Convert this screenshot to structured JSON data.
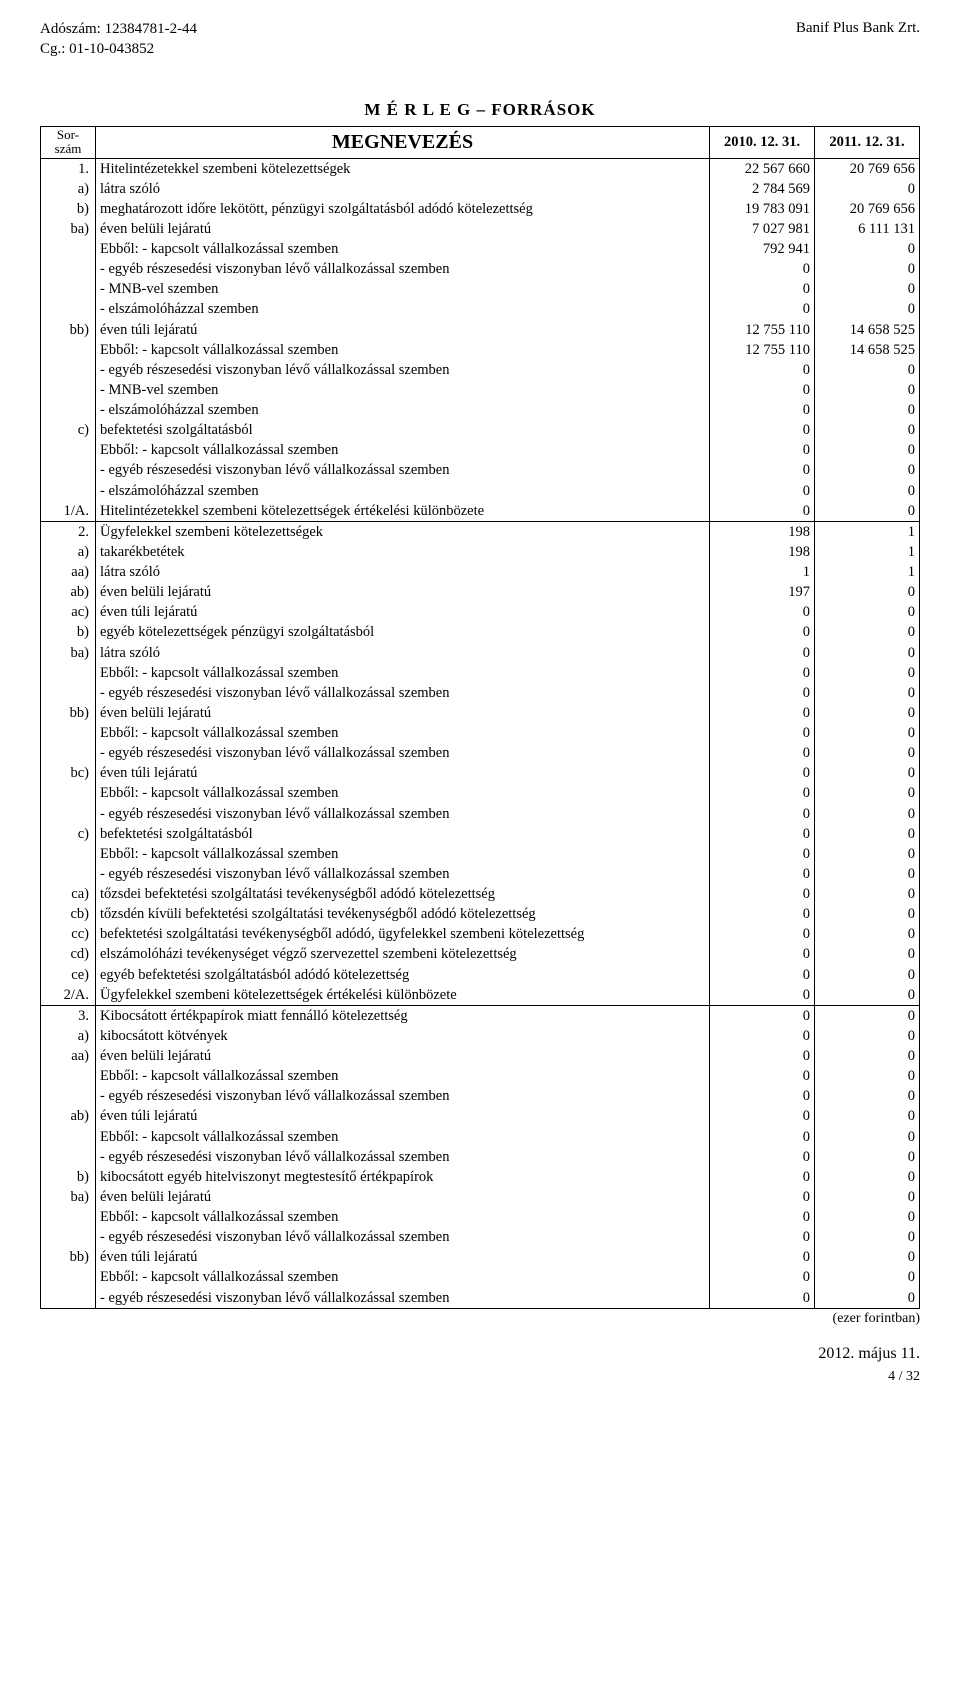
{
  "header": {
    "tax_label": "Adószám: 12384781-2-44",
    "cg_label": "Cg.: 01-10-043852",
    "company": "Banif Plus Bank Zrt."
  },
  "title": "M É R L E G – FORRÁSOK",
  "columns": {
    "sorszam": "Sor-szám",
    "megnevezes": "MEGNEVEZÉS",
    "year1": "2010. 12. 31.",
    "year2": "2011. 12. 31."
  },
  "rows": [
    {
      "n": "1.",
      "name": "Hitelintézetekkel szembeni kötelezettségek",
      "v1": "22 567 660",
      "v2": "20 769 656",
      "section": true
    },
    {
      "n": "a)",
      "name": "látra szóló",
      "v1": "2 784 569",
      "v2": "0"
    },
    {
      "n": "b)",
      "name": "meghatározott időre lekötött, pénzügyi szolgáltatásból adódó kötelezettség",
      "v1": "19 783 091",
      "v2": "20 769 656"
    },
    {
      "n": "ba)",
      "name": "éven belüli lejáratú",
      "v1": "7 027 981",
      "v2": "6 111 131"
    },
    {
      "n": "",
      "name": "Ebből: - kapcsolt vállalkozással szemben",
      "v1": "792 941",
      "v2": "0"
    },
    {
      "n": "",
      "name": "- egyéb részesedési viszonyban lévő vállalkozással szemben",
      "v1": "0",
      "v2": "0"
    },
    {
      "n": "",
      "name": "- MNB-vel szemben",
      "v1": "0",
      "v2": "0"
    },
    {
      "n": "",
      "name": "- elszámolóházzal szemben",
      "v1": "0",
      "v2": "0"
    },
    {
      "n": "bb)",
      "name": "éven túli lejáratú",
      "v1": "12 755 110",
      "v2": "14 658 525"
    },
    {
      "n": "",
      "name": "Ebből: - kapcsolt vállalkozással szemben",
      "v1": "12 755 110",
      "v2": "14 658 525"
    },
    {
      "n": "",
      "name": "- egyéb részesedési viszonyban lévő vállalkozással szemben",
      "v1": "0",
      "v2": "0"
    },
    {
      "n": "",
      "name": "- MNB-vel szemben",
      "v1": "0",
      "v2": "0"
    },
    {
      "n": "",
      "name": "- elszámolóházzal szemben",
      "v1": "0",
      "v2": "0"
    },
    {
      "n": "c)",
      "name": "befektetési szolgáltatásból",
      "v1": "0",
      "v2": "0"
    },
    {
      "n": "",
      "name": "Ebből: - kapcsolt vállalkozással szemben",
      "v1": "0",
      "v2": "0"
    },
    {
      "n": "",
      "name": "- egyéb részesedési viszonyban lévő vállalkozással szemben",
      "v1": "0",
      "v2": "0"
    },
    {
      "n": "",
      "name": "- elszámolóházzal szemben",
      "v1": "0",
      "v2": "0"
    },
    {
      "n": "1/A.",
      "name": "Hitelintézetekkel szembeni kötelezettségek értékelési különbözete",
      "v1": "0",
      "v2": "0"
    },
    {
      "n": "2.",
      "name": "Ügyfelekkel szembeni kötelezettségek",
      "v1": "198",
      "v2": "1",
      "section": true
    },
    {
      "n": "a)",
      "name": "takarékbetétek",
      "v1": "198",
      "v2": "1"
    },
    {
      "n": "aa)",
      "name": "látra szóló",
      "v1": "1",
      "v2": "1"
    },
    {
      "n": "ab)",
      "name": "éven belüli lejáratú",
      "v1": "197",
      "v2": "0"
    },
    {
      "n": "ac)",
      "name": "éven túli lejáratú",
      "v1": "0",
      "v2": "0"
    },
    {
      "n": "b)",
      "name": "egyéb kötelezettségek pénzügyi szolgáltatásból",
      "v1": "0",
      "v2": "0"
    },
    {
      "n": "ba)",
      "name": "látra szóló",
      "v1": "0",
      "v2": "0"
    },
    {
      "n": "",
      "name": "Ebből: - kapcsolt vállalkozással szemben",
      "v1": "0",
      "v2": "0"
    },
    {
      "n": "",
      "name": "- egyéb részesedési viszonyban lévő vállalkozással szemben",
      "v1": "0",
      "v2": "0"
    },
    {
      "n": "bb)",
      "name": "éven belüli lejáratú",
      "v1": "0",
      "v2": "0"
    },
    {
      "n": "",
      "name": "Ebből: - kapcsolt vállalkozással szemben",
      "v1": "0",
      "v2": "0"
    },
    {
      "n": "",
      "name": "- egyéb részesedési viszonyban lévő vállalkozással szemben",
      "v1": "0",
      "v2": "0"
    },
    {
      "n": "bc)",
      "name": "éven túli lejáratú",
      "v1": "0",
      "v2": "0"
    },
    {
      "n": "",
      "name": "Ebből: - kapcsolt vállalkozással szemben",
      "v1": "0",
      "v2": "0"
    },
    {
      "n": "",
      "name": "- egyéb részesedési viszonyban lévő vállalkozással szemben",
      "v1": "0",
      "v2": "0"
    },
    {
      "n": "c)",
      "name": "befektetési szolgáltatásból",
      "v1": "0",
      "v2": "0"
    },
    {
      "n": "",
      "name": "Ebből: - kapcsolt vállalkozással szemben",
      "v1": "0",
      "v2": "0"
    },
    {
      "n": "",
      "name": "- egyéb részesedési viszonyban lévő vállalkozással szemben",
      "v1": "0",
      "v2": "0"
    },
    {
      "n": "ca)",
      "name": "tőzsdei befektetési szolgáltatási tevékenységből adódó kötelezettség",
      "v1": "0",
      "v2": "0"
    },
    {
      "n": "cb)",
      "name": "tőzsdén kívüli befektetési szolgáltatási tevékenységből adódó kötelezettség",
      "v1": "0",
      "v2": "0"
    },
    {
      "n": "cc)",
      "name": "befektetési szolgáltatási tevékenységből adódó, ügyfelekkel szembeni kötelezettség",
      "v1": "0",
      "v2": "0"
    },
    {
      "n": "cd)",
      "name": "elszámolóházi tevékenységet végző szervezettel szembeni kötelezettség",
      "v1": "0",
      "v2": "0"
    },
    {
      "n": "ce)",
      "name": "egyéb befektetési szolgáltatásból adódó kötelezettség",
      "v1": "0",
      "v2": "0"
    },
    {
      "n": "2/A.",
      "name": "Ügyfelekkel szembeni kötelezettségek értékelési különbözete",
      "v1": "0",
      "v2": "0"
    },
    {
      "n": "3.",
      "name": "Kibocsátott értékpapírok miatt fennálló kötelezettség",
      "v1": "0",
      "v2": "0",
      "section": true
    },
    {
      "n": "a)",
      "name": "kibocsátott kötvények",
      "v1": "0",
      "v2": "0"
    },
    {
      "n": "aa)",
      "name": "éven belüli lejáratú",
      "v1": "0",
      "v2": "0"
    },
    {
      "n": "",
      "name": "Ebből: - kapcsolt vállalkozással szemben",
      "v1": "0",
      "v2": "0"
    },
    {
      "n": "",
      "name": "- egyéb részesedési viszonyban lévő vállalkozással szemben",
      "v1": "0",
      "v2": "0"
    },
    {
      "n": "ab)",
      "name": "éven túli lejáratú",
      "v1": "0",
      "v2": "0"
    },
    {
      "n": "",
      "name": "Ebből: - kapcsolt vállalkozással szemben",
      "v1": "0",
      "v2": "0"
    },
    {
      "n": "",
      "name": "- egyéb részesedési viszonyban lévő vállalkozással szemben",
      "v1": "0",
      "v2": "0"
    },
    {
      "n": "b)",
      "name": "kibocsátott egyéb hitelviszonyt megtestesítő értékpapírok",
      "v1": "0",
      "v2": "0"
    },
    {
      "n": "ba)",
      "name": "éven belüli lejáratú",
      "v1": "0",
      "v2": "0"
    },
    {
      "n": "",
      "name": "Ebből: - kapcsolt vállalkozással szemben",
      "v1": "0",
      "v2": "0"
    },
    {
      "n": "",
      "name": "- egyéb részesedési viszonyban lévő vállalkozással szemben",
      "v1": "0",
      "v2": "0"
    },
    {
      "n": "bb)",
      "name": "éven túli lejáratú",
      "v1": "0",
      "v2": "0"
    },
    {
      "n": "",
      "name": "Ebből: - kapcsolt vállalkozással szemben",
      "v1": "0",
      "v2": "0"
    },
    {
      "n": "",
      "name": "- egyéb részesedési viszonyban lévő vállalkozással szemben",
      "v1": "0",
      "v2": "0"
    }
  ],
  "footer": {
    "unit_note": "(ezer forintban)",
    "date": "2012. május 11.",
    "page": "4 / 32"
  }
}
